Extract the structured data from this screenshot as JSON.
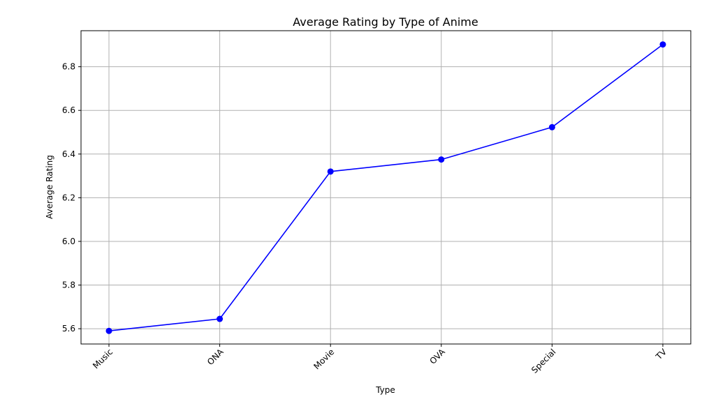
{
  "chart_data": {
    "type": "line",
    "title": "Average Rating by Type of Anime",
    "xlabel": "Type",
    "ylabel": "Average Rating",
    "categories": [
      "Music",
      "ONA",
      "Movie",
      "OVA",
      "Special",
      "TV"
    ],
    "series": [
      {
        "values": [
          5.59,
          5.645,
          6.32,
          6.375,
          6.523,
          6.902
        ]
      }
    ],
    "ylim": [
      5.53,
      6.965
    ],
    "yticks": [
      "5.6",
      "5.8",
      "6.0",
      "6.2",
      "6.4",
      "6.6",
      "6.8"
    ],
    "grid": true,
    "line_color": "#0000ff",
    "marker_color": "#0000ff",
    "marker": "circle"
  }
}
